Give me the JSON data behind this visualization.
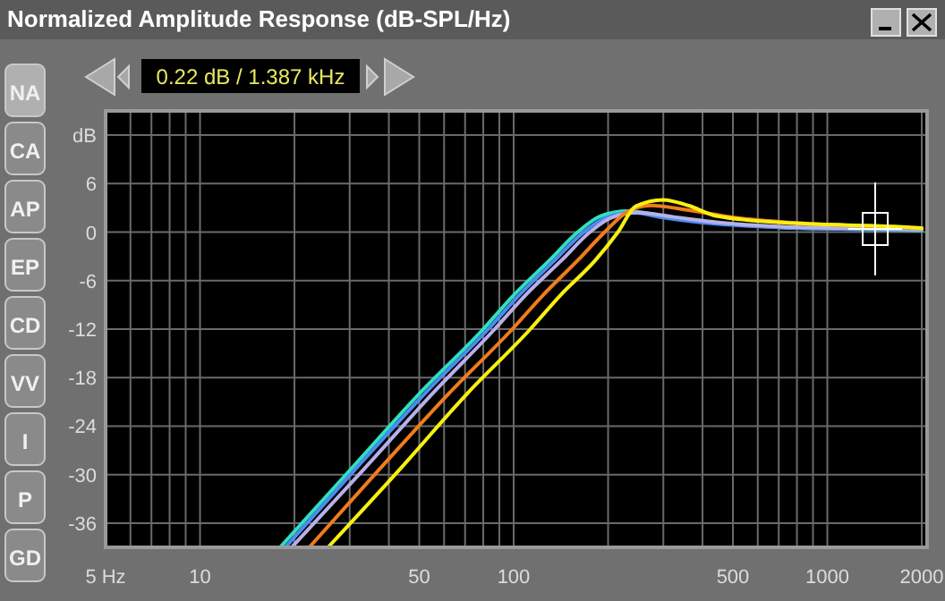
{
  "chart_data": {
    "type": "line",
    "title": "Normalized Amplitude Response (dB-SPL/Hz)",
    "log": "x",
    "grid": true,
    "xlim": [
      5,
      2080
    ],
    "ylim": [
      -39,
      15
    ],
    "xticks": [
      {
        "value": 5,
        "label": "5 Hz"
      },
      {
        "value": 6,
        "label": null
      },
      {
        "value": 7,
        "label": null
      },
      {
        "value": 8,
        "label": null
      },
      {
        "value": 9,
        "label": null
      },
      10,
      {
        "value": 20,
        "label": null
      },
      {
        "value": 30,
        "label": null
      },
      {
        "value": 40,
        "label": null
      },
      50,
      {
        "value": 60,
        "label": null
      },
      {
        "value": 70,
        "label": null
      },
      {
        "value": 80,
        "label": null
      },
      {
        "value": 90,
        "label": null
      },
      100,
      {
        "value": 200,
        "label": null
      },
      {
        "value": 300,
        "label": null
      },
      {
        "value": 400,
        "label": null
      },
      500,
      {
        "value": 600,
        "label": null
      },
      {
        "value": 700,
        "label": null
      },
      {
        "value": 800,
        "label": null
      },
      {
        "value": 900,
        "label": null
      },
      1000,
      2000
    ],
    "yticks": [
      -36,
      -30,
      -24,
      -18,
      -12,
      -6,
      0,
      6,
      {
        "value": 12,
        "label": "dB"
      }
    ],
    "annotations": [
      "0.22 dB / 1.387 kHz",
      "NA",
      "CA",
      "AP",
      "EP",
      "CD",
      "VV",
      "I",
      "P",
      "GD"
    ],
    "series": [
      {
        "color": "#30e0c0",
        "x": [
          18,
          30,
          50,
          80,
          100,
          130,
          160,
          190,
          230,
          300,
          450,
          700,
          1100,
          2000
        ],
        "values": [
          -39,
          -29.5,
          -20,
          -12,
          -7.8,
          -3.5,
          0,
          2,
          2.6,
          2,
          1.1,
          0.6,
          0.4,
          0.2
        ]
      },
      {
        "color": "#4a8cf0",
        "x": [
          18.7,
          31,
          52,
          83,
          104,
          135,
          167,
          200,
          240,
          300,
          450,
          700,
          1100,
          2000
        ],
        "values": [
          -39,
          -29.5,
          -20,
          -12,
          -7.8,
          -3.5,
          0,
          1.9,
          2.4,
          1.8,
          1,
          0.6,
          0.4,
          0.3
        ]
      },
      {
        "color": "#b8b0e8",
        "x": [
          19.6,
          33,
          55,
          87,
          109,
          142,
          175,
          205,
          250,
          320,
          450,
          700,
          1100,
          2000
        ],
        "values": [
          -39,
          -29.5,
          -20,
          -12,
          -7.8,
          -3.5,
          0,
          1.8,
          2.4,
          1.9,
          1.2,
          0.7,
          0.5,
          0.3
        ]
      },
      {
        "color": "#f07c1c",
        "x": [
          22.3,
          37,
          62,
          99,
          124,
          160,
          195,
          230,
          274,
          350,
          506,
          750,
          1064,
          2000
        ],
        "values": [
          -39,
          -29.5,
          -20,
          -12,
          -7.8,
          -3.5,
          0,
          2.5,
          3.3,
          2.8,
          1.8,
          1.2,
          0.9,
          0.5
        ]
      },
      {
        "color": "#f8f010",
        "x": [
          25.6,
          43,
          71,
          113,
          141,
          182,
          215,
          245,
          300,
          360,
          443,
          780,
          1640,
          2000
        ],
        "values": [
          -39,
          -29.5,
          -20,
          -12,
          -7.8,
          -3.5,
          0,
          3.2,
          4,
          3.3,
          2,
          1.1,
          0.7,
          0.5
        ]
      }
    ]
  }
}
